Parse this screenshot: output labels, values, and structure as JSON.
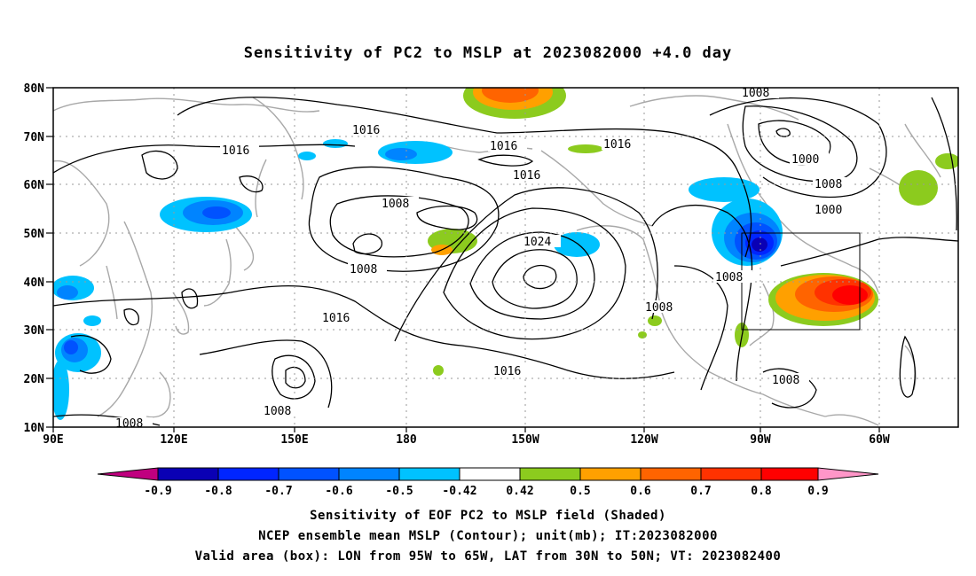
{
  "title": "Sensitivity of PC2 to MSLP at 2023082000 +4.0 day",
  "lat_ticks": [
    "80N",
    "70N",
    "60N",
    "50N",
    "40N",
    "30N",
    "20N",
    "10N"
  ],
  "lon_ticks": [
    "90E",
    "120E",
    "150E",
    "180",
    "150W",
    "120W",
    "90W",
    "60W"
  ],
  "contour_labels": [
    "1016",
    "1016",
    "1016",
    "1016",
    "1016",
    "1016",
    "1016",
    "1008",
    "1008",
    "1008",
    "1008",
    "1008",
    "1008",
    "1008",
    "1008",
    "1008",
    "1000",
    "1024"
  ],
  "colorbar": {
    "labels": [
      "-0.9",
      "-0.8",
      "-0.7",
      "-0.6",
      "-0.5",
      "-0.42",
      "0.42",
      "0.5",
      "0.6",
      "0.7",
      "0.8",
      "0.9"
    ],
    "colors": [
      "#c0007f",
      "#0a00b4",
      "#0025ff",
      "#0052ff",
      "#0084ff",
      "#00c2ff",
      "#ffffff",
      "#8ccb1e",
      "#ffa000",
      "#ff6400",
      "#ff3200",
      "#ff0000",
      "#ff96c8"
    ]
  },
  "captions": [
    "Sensitivity of EOF PC2 to MSLP field (Shaded)",
    "NCEP ensemble mean MSLP (Contour); unit(mb); IT:2023082000",
    "Valid area (box): LON from 95W to 65W, LAT from 30N to 50N; VT: 2023082400"
  ]
}
